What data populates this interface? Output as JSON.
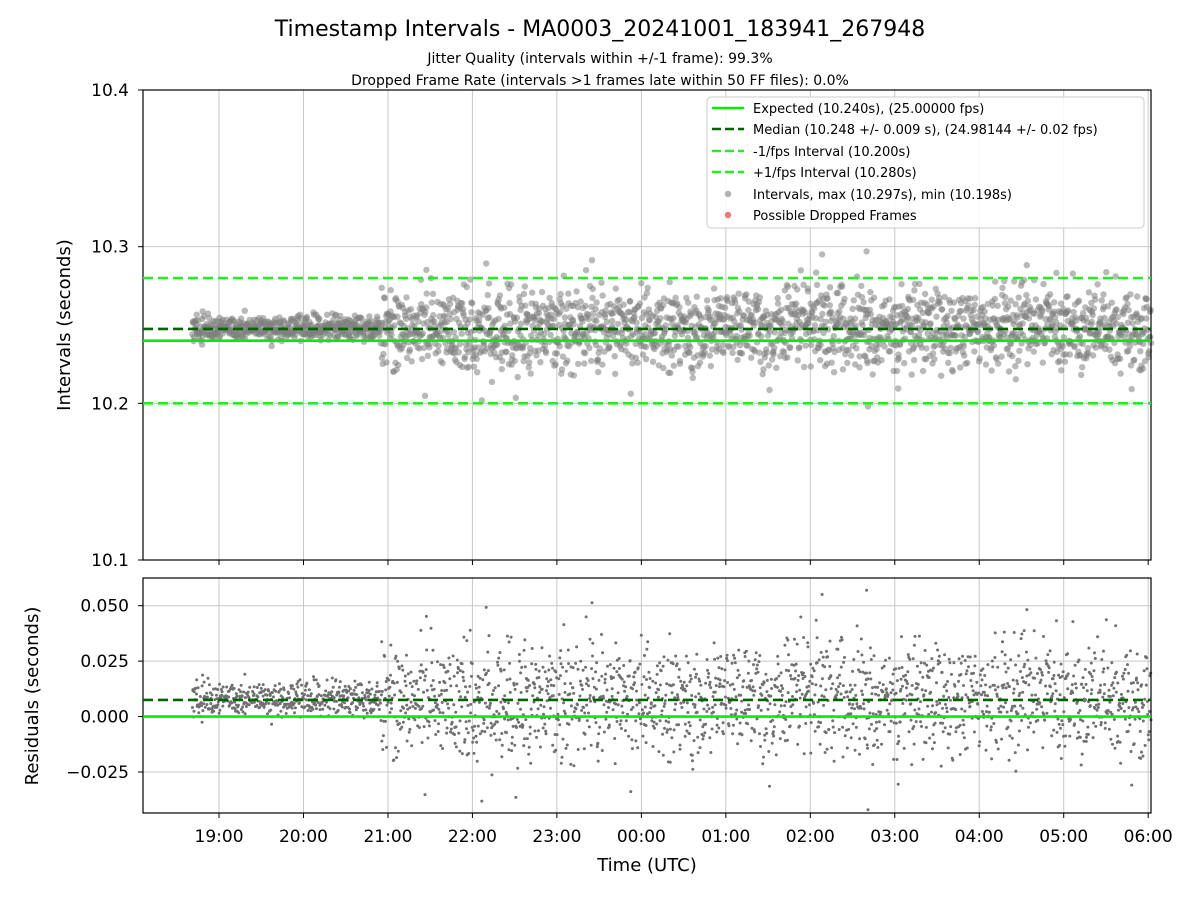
{
  "figure": {
    "title": "Timestamp Intervals - MA0003_20241001_183941_267948",
    "subtitle_1": "Jitter Quality (intervals within +/-1 frame): 99.3%",
    "subtitle_2": "Dropped Frame Rate (intervals >1 frames late within 50 FF files): 0.0%"
  },
  "chart_data": [
    {
      "type": "scatter",
      "ylabel": "Intervals (seconds)",
      "xlim": [
        "18:06",
        "06:02"
      ],
      "ylim": [
        10.1,
        10.4
      ],
      "yticks": [
        "10.1",
        "10.2",
        "10.3",
        "10.4"
      ],
      "grid": true,
      "legend_position": "top-right",
      "reference_lines": [
        {
          "name": "Expected (10.240s), (25.00000 fps)",
          "y": 10.24,
          "style": "solid",
          "color": "#00ee00"
        },
        {
          "name": "Median (10.248 +/- 0.009 s), (24.98144 +/- 0.02 fps)",
          "y": 10.2475,
          "style": "dashed",
          "color": "#006400"
        },
        {
          "name": "-1/fps Interval (10.200s)",
          "y": 10.2,
          "style": "dashed",
          "color": "#22ee22"
        },
        {
          "name": "+1/fps Interval (10.280s)",
          "y": 10.28,
          "style": "dashed",
          "color": "#22ee22"
        }
      ],
      "series": [
        {
          "name": "Intervals, max (10.297s), min (10.198s)",
          "color": "#808080",
          "x_start": "18:41",
          "x_end": "06:02",
          "base": 10.248,
          "max": 10.297,
          "min": 10.198,
          "spread_segments": [
            {
              "from": "18:41",
              "to": "20:55",
              "sd": 0.004
            },
            {
              "from": "20:55",
              "to": "06:02",
              "sd": 0.0135
            }
          ]
        },
        {
          "name": "Possible Dropped Frames",
          "color": "#ee5555",
          "values": []
        }
      ]
    },
    {
      "type": "scatter",
      "xlabel": "Time (UTC)",
      "ylabel": "Residuals (seconds)",
      "xlim": [
        "18:06",
        "06:02"
      ],
      "ylim": [
        -0.0435,
        0.0625
      ],
      "yticks": [
        "−0.025",
        "0.000",
        "0.025",
        "0.050"
      ],
      "xticks": [
        "19:00",
        "20:00",
        "21:00",
        "22:00",
        "23:00",
        "00:00",
        "01:00",
        "02:00",
        "03:00",
        "04:00",
        "05:00",
        "06:00"
      ],
      "grid": true,
      "reference_lines": [
        {
          "y": 0.0,
          "style": "solid",
          "color": "#00ee00"
        },
        {
          "y": 0.0075,
          "style": "dashed",
          "color": "#006400"
        }
      ],
      "series": [
        {
          "color": "#707070",
          "x_start": "18:41",
          "x_end": "06:02",
          "base": 0.008,
          "max": 0.057,
          "min": -0.042
        }
      ]
    }
  ]
}
